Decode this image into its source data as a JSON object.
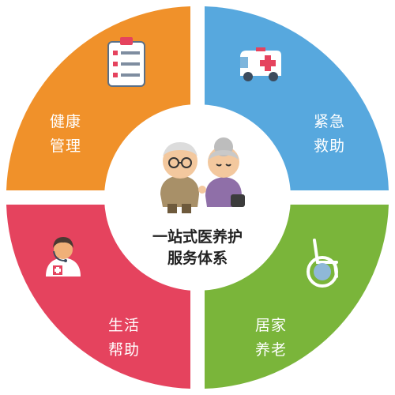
{
  "colors": {
    "health": "#f0912a",
    "emergency": "#57a8de",
    "life": "#e5435e",
    "home": "#7ab53a",
    "center": "#ffffff"
  },
  "quadrants": {
    "health": {
      "line1": "健康",
      "line2": "管理",
      "icon": "clipboard-checklist-icon"
    },
    "emergency": {
      "line1": "紧急",
      "line2": "救助",
      "icon": "ambulance-icon"
    },
    "life": {
      "line1": "生活",
      "line2": "帮助",
      "icon": "doctor-headset-icon"
    },
    "home": {
      "line1": "居家",
      "line2": "养老",
      "icon": "wheelchair-icon"
    }
  },
  "center": {
    "line1": "一站式医养护",
    "line2": "服务体系",
    "icon": "elderly-couple-icon"
  }
}
